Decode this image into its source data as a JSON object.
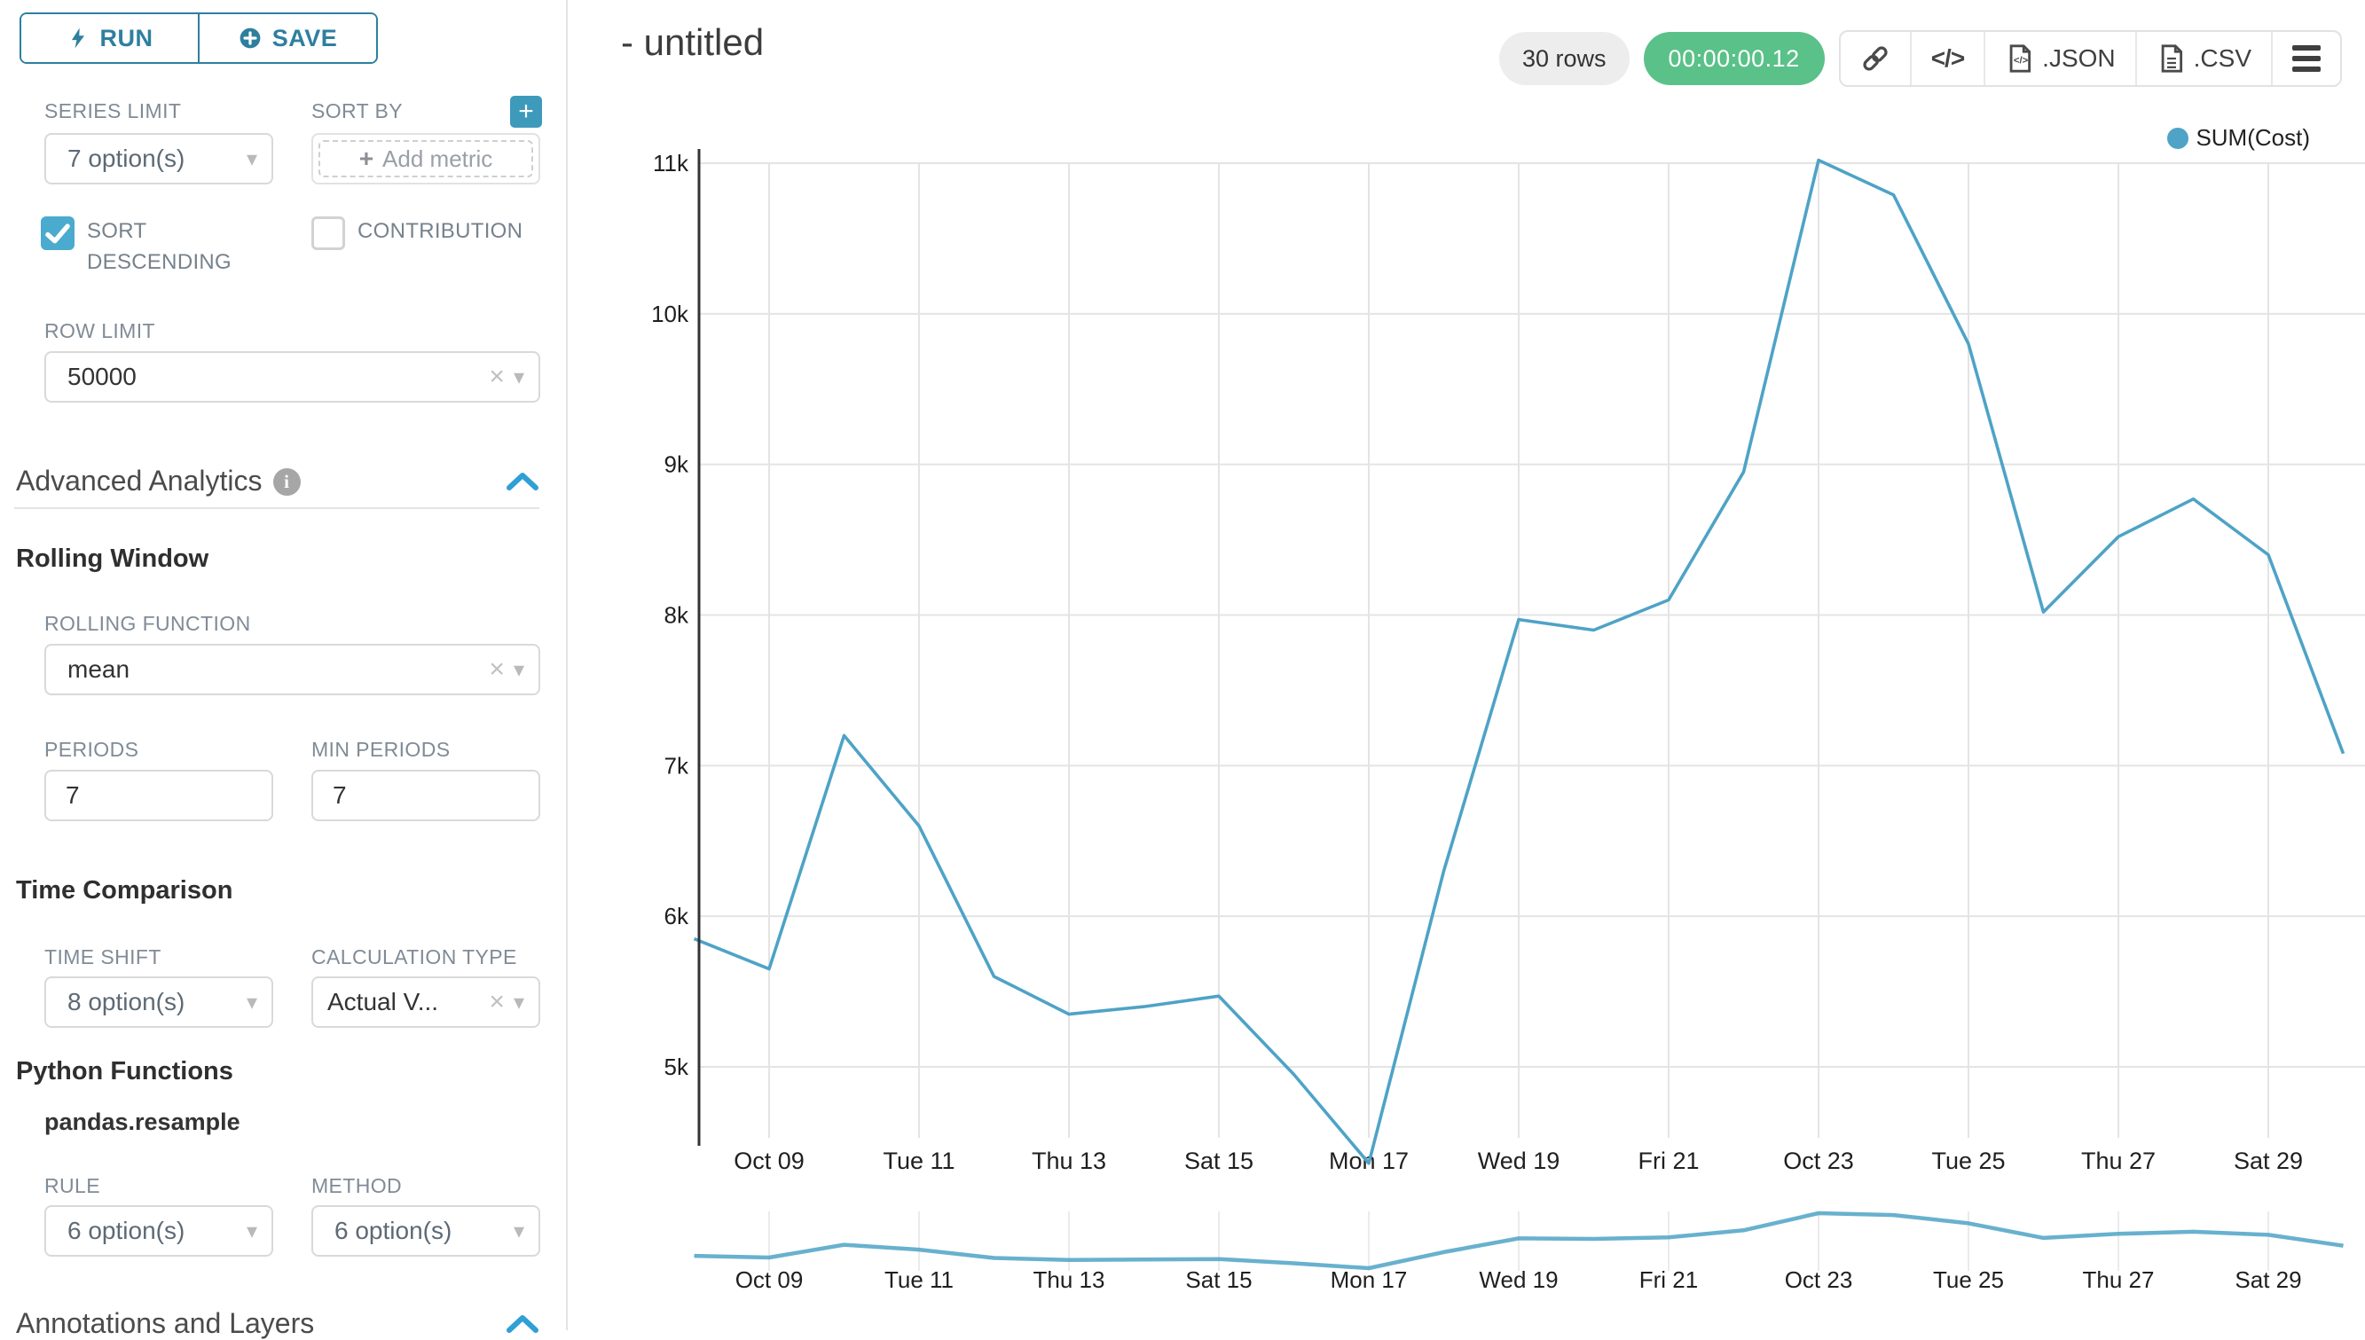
{
  "colors": {
    "accent": "#2e7f9f",
    "accent_bright": "#2f9fd6",
    "checkbox_checked": "#4aabce",
    "line": "#4ea3c6",
    "success_badge": "#5ac189",
    "rows_pill_bg": "#ededed",
    "grid": "#e4e4e4",
    "axis": "#333333"
  },
  "icons": {
    "caret": "▾",
    "clear": "×",
    "plus": "+",
    "code": "</>",
    "info": "i"
  },
  "sidebar": {
    "run_label": "RUN",
    "save_label": "SAVE",
    "series_limit": {
      "label": "SERIES LIMIT",
      "value": "7 option(s)"
    },
    "sort_by": {
      "label": "SORT BY",
      "placeholder": "Add metric"
    },
    "sort_descending": {
      "label": "SORT DESCENDING",
      "checked": true
    },
    "contribution": {
      "label": "CONTRIBUTION",
      "checked": false
    },
    "row_limit": {
      "label": "ROW LIMIT",
      "value": "50000"
    },
    "advanced_analytics": {
      "title": "Advanced Analytics"
    },
    "rolling_window": {
      "title": "Rolling Window",
      "rolling_function": {
        "label": "ROLLING FUNCTION",
        "value": "mean"
      },
      "periods": {
        "label": "PERIODS",
        "value": "7"
      },
      "min_periods": {
        "label": "MIN PERIODS",
        "value": "7"
      }
    },
    "time_comparison": {
      "title": "Time Comparison",
      "time_shift": {
        "label": "TIME SHIFT",
        "value": "8 option(s)"
      },
      "calculation_type": {
        "label": "CALCULATION TYPE",
        "value": "Actual V..."
      }
    },
    "python_functions": {
      "title": "Python Functions",
      "subtitle": "pandas.resample",
      "rule": {
        "label": "RULE",
        "value": "6 option(s)"
      },
      "method": {
        "label": "METHOD",
        "value": "6 option(s)"
      }
    },
    "annotations": {
      "title": "Annotations and Layers"
    }
  },
  "header": {
    "title": "- untitled",
    "rows_badge": "30 rows",
    "timer_badge": "00:00:00.12",
    "export_json_label": ".JSON",
    "export_csv_label": ".CSV"
  },
  "chart_data": {
    "type": "line",
    "title": "",
    "legend_label": "SUM(Cost)",
    "legend_position": "top-right",
    "grid": true,
    "x": [
      "Oct 08",
      "Oct 09",
      "Oct 10",
      "Oct 11",
      "Oct 12",
      "Oct 13",
      "Oct 14",
      "Oct 15",
      "Oct 16",
      "Oct 17",
      "Oct 18",
      "Oct 19",
      "Oct 20",
      "Oct 21",
      "Oct 22",
      "Oct 23",
      "Oct 24",
      "Oct 25",
      "Oct 26",
      "Oct 27",
      "Oct 28",
      "Oct 29",
      "Oct 30"
    ],
    "series": [
      {
        "name": "SUM(Cost)",
        "values": [
          5850,
          5650,
          7200,
          6600,
          5600,
          5350,
          5400,
          5470,
          4950,
          4360,
          6300,
          7970,
          7900,
          8100,
          8950,
          11020,
          10790,
          9800,
          8020,
          8520,
          8770,
          8400,
          7080
        ]
      }
    ],
    "xlabel": "",
    "ylabel": "",
    "ylim": [
      4300,
      11100
    ],
    "y_ticks": [
      11000,
      10000,
      9000,
      8000,
      7000,
      6000,
      5000
    ],
    "y_tick_labels": [
      "11k",
      "10k",
      "9k",
      "8k",
      "7k",
      "6k",
      "5k"
    ],
    "x_tick_indices": [
      1,
      3,
      5,
      7,
      9,
      11,
      13,
      15,
      17,
      19,
      21
    ],
    "x_tick_labels": [
      "Oct 09",
      "Tue 11",
      "Thu 13",
      "Sat 15",
      "Mon 17",
      "Wed 19",
      "Fri 21",
      "Oct 23",
      "Tue 25",
      "Thu 27",
      "Sat 29"
    ],
    "has_mini_preview": true
  }
}
